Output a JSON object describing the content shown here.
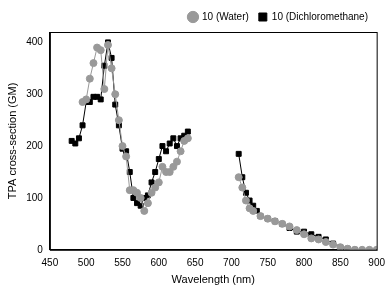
{
  "chart_data": {
    "type": "line",
    "x_label": "Wavelength (nm)",
    "y_label": "TPA cross-section (GM)",
    "xlim": [
      450,
      900
    ],
    "xticks": [
      450,
      500,
      550,
      600,
      650,
      700,
      750,
      800,
      850,
      900
    ],
    "ylim": [
      0,
      420
    ],
    "yticks": [
      0,
      100,
      200,
      300,
      400
    ],
    "grid": false,
    "legend": "upper right",
    "series": [
      {
        "name": "10 (Water)",
        "color": "#999999",
        "marker": "circle",
        "line_style": "solid",
        "x": [
          495,
          500,
          505,
          510,
          515,
          520,
          525,
          530,
          535,
          540,
          545,
          550,
          555,
          560,
          565,
          570,
          575,
          580,
          585,
          590,
          595,
          600,
          605,
          610,
          615,
          620,
          625,
          630,
          635,
          640,
          675,
          710,
          715,
          720,
          725,
          730,
          740,
          750,
          760,
          770,
          780,
          790,
          800,
          810,
          820,
          830,
          840,
          850,
          860,
          870,
          880,
          890,
          900
        ],
        "values": [
          285,
          290,
          330,
          360,
          390,
          385,
          310,
          395,
          350,
          300,
          250,
          200,
          180,
          115,
          115,
          110,
          100,
          75,
          90,
          110,
          120,
          130,
          160,
          150,
          150,
          160,
          170,
          190,
          210,
          215,
          null,
          140,
          120,
          95,
          80,
          75,
          65,
          60,
          55,
          50,
          45,
          38,
          30,
          22,
          20,
          15,
          10,
          5,
          2,
          0,
          0,
          0,
          0
        ]
      },
      {
        "name": "10 (Dichloromethane)",
        "color": "#000000",
        "marker": "square",
        "line_style": "solid",
        "x": [
          480,
          485,
          490,
          495,
          500,
          505,
          510,
          515,
          520,
          525,
          530,
          535,
          540,
          545,
          550,
          555,
          560,
          565,
          570,
          575,
          580,
          585,
          590,
          595,
          600,
          605,
          610,
          615,
          620,
          625,
          630,
          635,
          640,
          675,
          710,
          715,
          720,
          725,
          730,
          735,
          740,
          750,
          760,
          770,
          780,
          790,
          800,
          810,
          820,
          830,
          840,
          850,
          860,
          870
        ],
        "values": [
          210,
          205,
          215,
          240,
          285,
          285,
          295,
          295,
          290,
          355,
          400,
          370,
          280,
          240,
          195,
          190,
          150,
          100,
          90,
          85,
          100,
          105,
          130,
          150,
          175,
          200,
          190,
          205,
          215,
          200,
          215,
          220,
          228,
          null,
          185,
          140,
          110,
          95,
          85,
          75,
          65,
          60,
          55,
          50,
          42,
          35,
          35,
          30,
          25,
          20,
          12,
          5,
          2,
          0
        ]
      }
    ]
  }
}
